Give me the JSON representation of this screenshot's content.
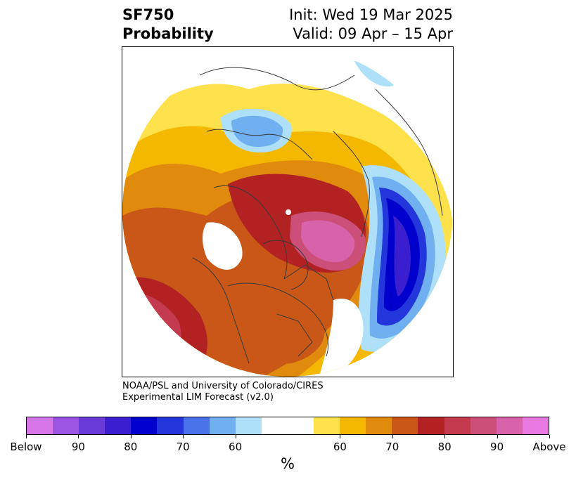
{
  "title": {
    "variable": "SF750",
    "subtitle": "Probability",
    "init": "Init: Wed 19 Mar 2025",
    "valid": "Valid: 09 Apr – 15 Apr"
  },
  "credit": {
    "line1": "NOAA/PSL and University of Colorado/CIRES",
    "line2": "Experimental LIM Forecast (v2.0)"
  },
  "colorbar": {
    "colors": [
      "#d675e8",
      "#9b55e0",
      "#6a3ad8",
      "#3a1ed0",
      "#0000cc",
      "#2236dc",
      "#4a72e8",
      "#70b0f0",
      "#aee0fa",
      "#ffffff",
      "#ffffff",
      "#ffe14c",
      "#f5b800",
      "#e08a0e",
      "#c85718",
      "#b22222",
      "#c43a4e",
      "#cc4f7a",
      "#d863ab",
      "#e779e0"
    ],
    "tick_labels": [
      "Below",
      "90",
      "80",
      "70",
      "60",
      "60",
      "70",
      "80",
      "90",
      "Above"
    ],
    "units": "%"
  },
  "map": {
    "projection": "north-polar-stereographic",
    "below_color": "#2a1fd6",
    "above_color": "#d65d9e"
  }
}
